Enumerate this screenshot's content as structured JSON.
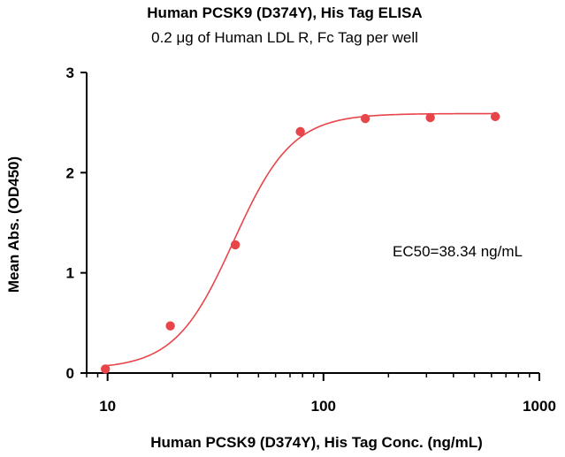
{
  "chart_data": {
    "type": "scatter",
    "title": "Human PCSK9 (D374Y), His Tag ELISA",
    "subtitle": "0.2 μg of Human LDL R, Fc Tag per well",
    "xlabel": "Human PCSK9 (D374Y), His Tag Conc. (ng/mL)",
    "ylabel": "Mean Abs. (OD450)",
    "x_scale": "log",
    "xlim": [
      8,
      1000
    ],
    "ylim": [
      0,
      3
    ],
    "x_ticks": [
      10,
      100,
      1000
    ],
    "x_tick_labels": [
      "10",
      "100",
      "1000"
    ],
    "y_ticks": [
      0,
      1,
      2,
      3
    ],
    "y_tick_labels": [
      "0",
      "1",
      "2",
      "3"
    ],
    "grid": false,
    "point_color": "#e8454a",
    "curve_color": "#e8454a",
    "series": [
      {
        "x": [
          9.77,
          19.53,
          39.06,
          78.13,
          156.25,
          312.5,
          625
        ],
        "y": [
          0.04,
          0.47,
          1.28,
          2.41,
          2.54,
          2.55,
          2.56
        ]
      }
    ],
    "fit": {
      "model": "4PL",
      "bottom": 0.04,
      "top": 2.59,
      "ec50": 38.34,
      "hill": 3.2
    },
    "annotation": "EC50=38.34 ng/mL"
  }
}
